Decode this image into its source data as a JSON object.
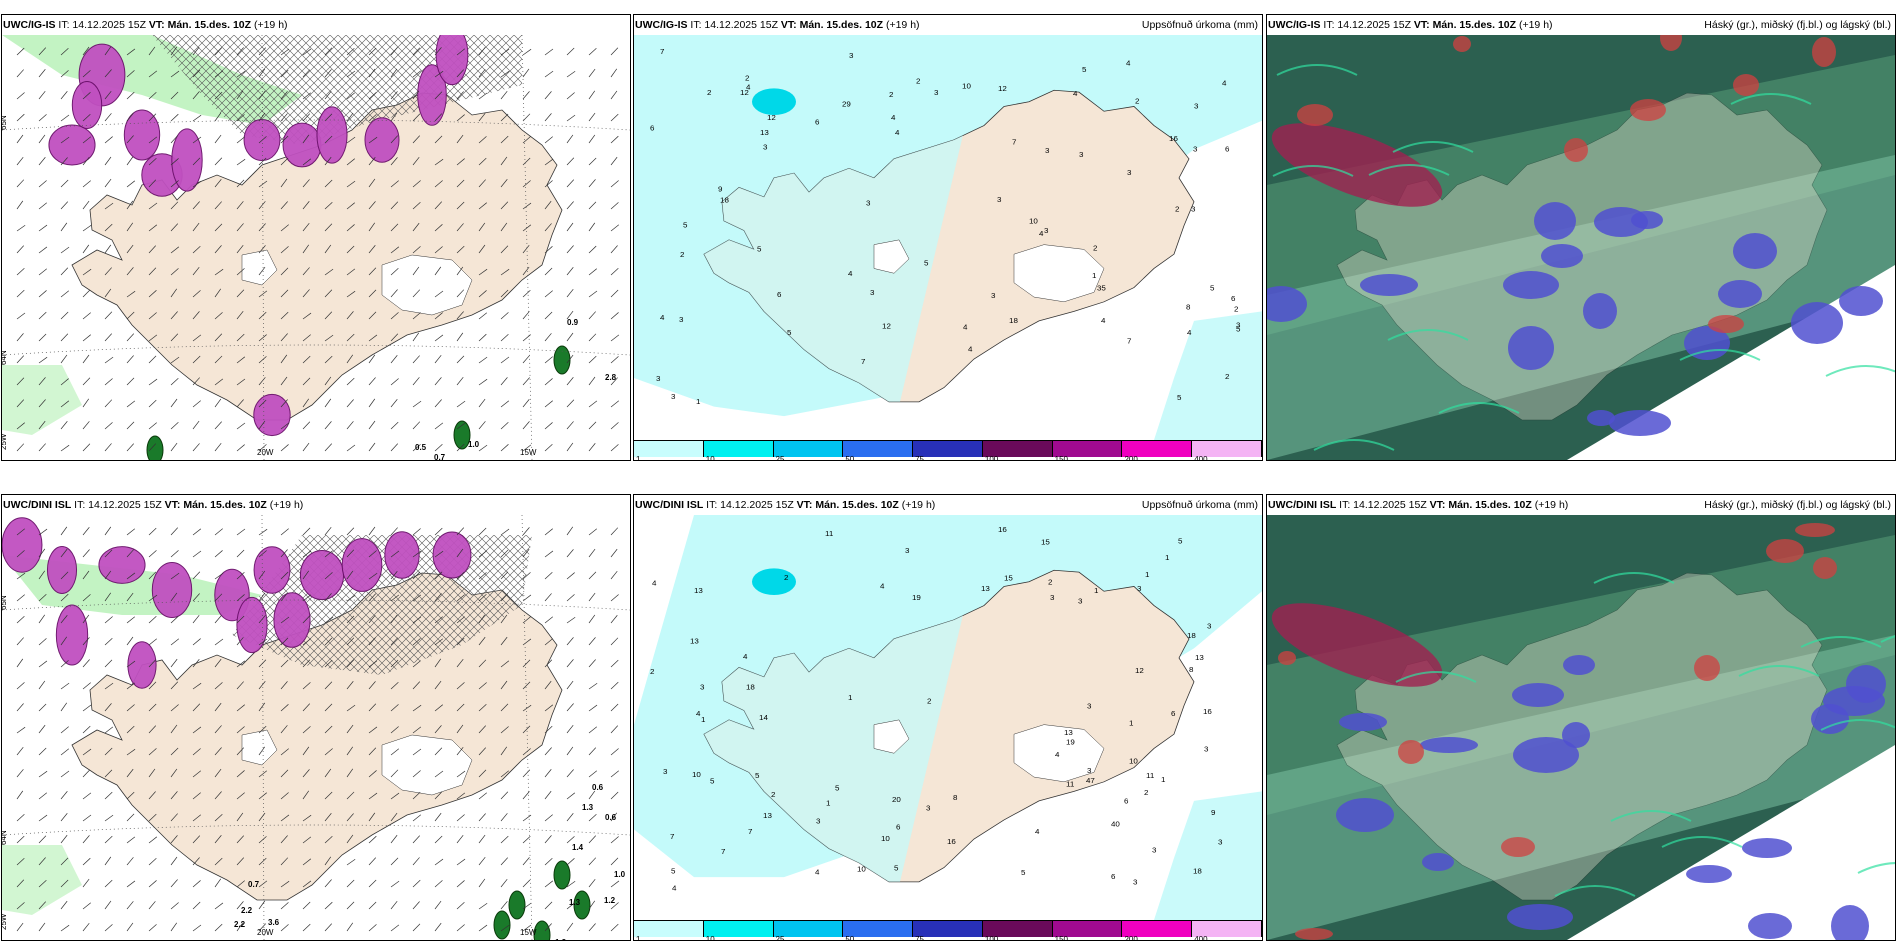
{
  "panels": [
    {
      "model": "UWC/IG-IS",
      "it": "IT: 14.12.2025 15Z",
      "vt_label": "VT:",
      "vt": "Mán. 15.des. 10Z",
      "lead": "(+19 h)",
      "right": "",
      "kind": "precip-type"
    },
    {
      "model": "UWC/IG-IS",
      "it": "IT: 14.12.2025 15Z",
      "vt_label": "VT:",
      "vt": "Mán. 15.des. 10Z",
      "lead": "(+19 h)",
      "right": "Uppsöfnuð úrkoma (mm)",
      "kind": "accum"
    },
    {
      "model": "UWC/IG-IS",
      "it": "IT: 14.12.2025 15Z",
      "vt_label": "VT:",
      "vt": "Mán. 15.des. 10Z",
      "lead": "(+19 h)",
      "right": "Háský (gr.), miðský (fj.bl.) og lágský (bl.)",
      "kind": "cloud"
    },
    {
      "model": "UWC/DINI ISL",
      "it": "IT: 14.12.2025 15Z",
      "vt_label": "VT:",
      "vt": "Mán. 15.des. 10Z",
      "lead": "(+19 h)",
      "right": "",
      "kind": "precip-type"
    },
    {
      "model": "UWC/DINI ISL",
      "it": "IT: 14.12.2025 15Z",
      "vt_label": "VT:",
      "vt": "Mán. 15.des. 10Z",
      "lead": "(+19 h)",
      "right": "Uppsöfnuð úrkoma (mm)",
      "kind": "accum"
    },
    {
      "model": "UWC/DINI ISL",
      "it": "IT: 14.12.2025 15Z",
      "vt_label": "VT:",
      "vt": "Mán. 15.des. 10Z",
      "lead": "(+19 h)",
      "right": "Háský (gr.), miðský (fj.bl.) og lágský (bl.)",
      "kind": "cloud"
    }
  ],
  "axis_labels": {
    "lat_top": "65N",
    "lat_bottom": "64N",
    "lon_left": "25W",
    "lon_mid": "20W",
    "lon_right": "15W"
  },
  "colorbar": {
    "ticks": [
      "1",
      "10",
      "25",
      "50",
      "75",
      "100",
      "150",
      "200",
      "400"
    ],
    "colors": [
      "#c8fdfd",
      "#00f0f0",
      "#00c4f0",
      "#2a6ef0",
      "#2830b8",
      "#6a0a5a",
      "#a00a90",
      "#f000c0",
      "#f4b4f4"
    ]
  },
  "colors": {
    "land": "#f5e6d6",
    "precip_field": "#c4fafa",
    "snow": "#c050c0",
    "rain": "#1a7a2a",
    "drizzle": "#b4f0b4",
    "cloud_high": "#2c6050",
    "cloud_mid": "#3a80a0",
    "cloud_low": "#5050d0"
  },
  "accum_values_top": [
    "6",
    "5",
    "5",
    "4",
    "3",
    "3",
    "4",
    "3",
    "12",
    "10",
    "2",
    "3",
    "8",
    "7",
    "10",
    "6",
    "4",
    "2",
    "2",
    "13",
    "16",
    "29",
    "35",
    "12",
    "3",
    "4",
    "4",
    "4",
    "4",
    "3",
    "4",
    "4",
    "3",
    "6",
    "3",
    "3",
    "7",
    "3",
    "3",
    "4",
    "2",
    "3",
    "12",
    "18",
    "4",
    "7",
    "5",
    "3",
    "1",
    "3",
    "5",
    "3",
    "2",
    "3",
    "3",
    "2",
    "4",
    "2",
    "2",
    "7",
    "12",
    "18",
    "5",
    "5",
    "9",
    "6",
    "4",
    "6",
    "2",
    "3",
    "1",
    "5",
    "5",
    "2"
  ],
  "accum_values_bottom": [
    "7",
    "6",
    "5",
    "4",
    "4",
    "1",
    "10",
    "4",
    "13",
    "20",
    "16",
    "40",
    "47",
    "18",
    "18",
    "10",
    "16",
    "16",
    "13",
    "7",
    "7",
    "4",
    "3",
    "3",
    "5",
    "3",
    "15",
    "18",
    "4",
    "3",
    "14",
    "13",
    "6",
    "6",
    "3",
    "5",
    "5",
    "5",
    "4",
    "3",
    "3",
    "3",
    "3",
    "3",
    "2",
    "4",
    "2",
    "12",
    "11",
    "10",
    "8",
    "2",
    "2",
    "1",
    "4",
    "1",
    "1",
    "2",
    "3",
    "2",
    "3",
    "5",
    "6",
    "8",
    "9",
    "11",
    "13",
    "19",
    "10",
    "13",
    "19",
    "15",
    "11",
    "13",
    "3",
    "1",
    "1",
    "1",
    "1",
    "3",
    "3",
    "5"
  ],
  "wind_values_top": [
    "0.9",
    "2.8",
    "0.5",
    "0.7",
    "1.0"
  ],
  "wind_values_bottom": [
    "0.6",
    "0.6",
    "1.3",
    "1.4",
    "1.0",
    "1.2",
    "1.3",
    "1.3",
    "0.7",
    "2.2",
    "2.2",
    "3.6"
  ]
}
